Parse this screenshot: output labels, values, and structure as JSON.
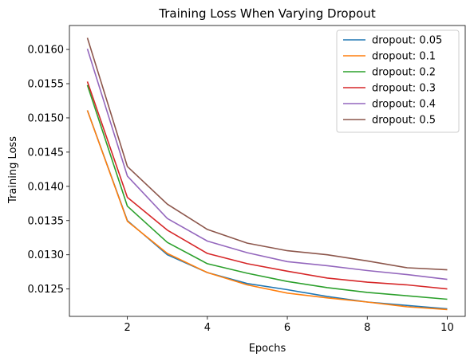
{
  "chart_data": {
    "type": "line",
    "title": "Training Loss When Varying Dropout",
    "xlabel": "Epochs",
    "ylabel": "Training Loss",
    "xlim": [
      0.55,
      10.45
    ],
    "ylim": [
      0.0121,
      0.01635
    ],
    "x": [
      1,
      2,
      3,
      4,
      5,
      6,
      7,
      8,
      9,
      10
    ],
    "xticks": [
      2,
      4,
      6,
      8,
      10
    ],
    "xtick_labels": [
      "2",
      "4",
      "6",
      "8",
      "10"
    ],
    "yticks": [
      0.0125,
      0.013,
      0.0135,
      0.014,
      0.0145,
      0.015,
      0.0155,
      0.016
    ],
    "ytick_labels": [
      "0.0125",
      "0.0130",
      "0.0135",
      "0.0140",
      "0.0145",
      "0.0150",
      "0.0155",
      "0.0160"
    ],
    "grid": false,
    "legend_position": "top-right",
    "series": [
      {
        "name": "dropout: 0.05",
        "color": "#1f77b4",
        "values": [
          0.01511,
          0.0135,
          0.013,
          0.01274,
          0.01258,
          0.01249,
          0.01239,
          0.01231,
          0.01226,
          0.01221
        ]
      },
      {
        "name": "dropout: 0.1",
        "color": "#ff7f0e",
        "values": [
          0.01511,
          0.01349,
          0.01302,
          0.01274,
          0.01256,
          0.01244,
          0.01237,
          0.01231,
          0.01224,
          0.0122
        ]
      },
      {
        "name": "dropout: 0.2",
        "color": "#2ca02c",
        "values": [
          0.01548,
          0.01371,
          0.01318,
          0.01287,
          0.01273,
          0.01261,
          0.01252,
          0.01245,
          0.0124,
          0.01235
        ]
      },
      {
        "name": "dropout: 0.3",
        "color": "#d62728",
        "values": [
          0.01553,
          0.01384,
          0.01336,
          0.01302,
          0.01287,
          0.01276,
          0.01266,
          0.0126,
          0.01256,
          0.0125
        ]
      },
      {
        "name": "dropout: 0.4",
        "color": "#9467bd",
        "values": [
          0.01601,
          0.01415,
          0.01353,
          0.0132,
          0.01303,
          0.0129,
          0.01284,
          0.01277,
          0.01271,
          0.01264
        ]
      },
      {
        "name": "dropout: 0.5",
        "color": "#8c564b",
        "values": [
          0.01617,
          0.01429,
          0.01374,
          0.01337,
          0.01317,
          0.01306,
          0.013,
          0.01291,
          0.01281,
          0.01278
        ]
      }
    ]
  }
}
